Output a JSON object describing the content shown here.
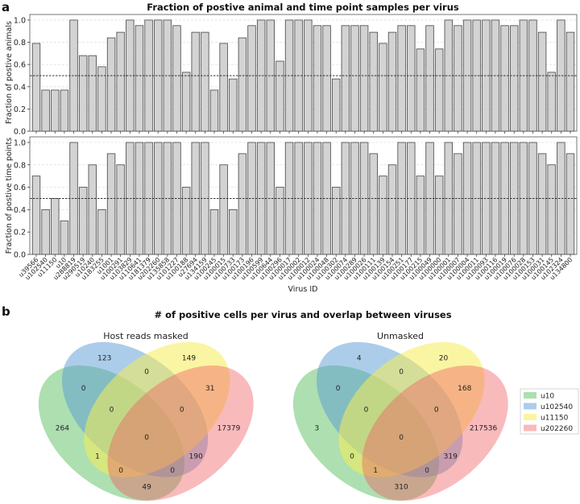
{
  "panel_a": {
    "letter": "a",
    "title": "Fraction of postive animal and time point samples per virus"
  },
  "panel_b": {
    "letter": "b",
    "title": "# of positive cells per virus and overlap between viruses"
  },
  "chart_data": [
    {
      "type": "bar",
      "title": "Fraction of postive animal and time point samples per virus",
      "ylabel": "Fraction of postive animals",
      "xlabel": "",
      "ylim": [
        0,
        1.05
      ],
      "yticks": [
        "0.0",
        "0.2",
        "0.4",
        "0.6",
        "0.8",
        "1.0"
      ],
      "threshold": 0.5,
      "grid": "horizontal dashed",
      "categories": [
        "u39566",
        "u102540",
        "u11150",
        "u10",
        "u288819",
        "u290519",
        "u10240",
        "u183255",
        "u1001",
        "u100291",
        "u103829",
        "u110641",
        "u181379",
        "u202260",
        "u135858",
        "u101227",
        "u100188",
        "u27694",
        "u134159",
        "u100245",
        "u100015",
        "u100733",
        "u100173",
        "u100196",
        "u100599",
        "u100644",
        "u100296",
        "u100017",
        "u100002",
        "u100012",
        "u100024",
        "u100048",
        "u100302",
        "u100074",
        "u100289",
        "u100026",
        "u100111",
        "u100139",
        "u100154",
        "u100251",
        "u100177",
        "u100215",
        "u100049",
        "u100000",
        "u100001",
        "u100007",
        "u100004",
        "u100011",
        "u100093",
        "u100116",
        "u100019",
        "u100076",
        "u100028",
        "u100153",
        "u100031",
        "u100145",
        "u102324",
        "u134800"
      ],
      "values": [
        0.79,
        0.37,
        0.37,
        0.37,
        1.0,
        0.68,
        0.68,
        0.58,
        0.84,
        0.89,
        1.0,
        0.95,
        1.0,
        1.0,
        1.0,
        0.95,
        0.53,
        0.89,
        0.89,
        0.37,
        0.79,
        0.47,
        0.84,
        0.95,
        1.0,
        1.0,
        0.63,
        1.0,
        1.0,
        1.0,
        0.95,
        0.95,
        0.47,
        0.95,
        0.95,
        0.95,
        0.89,
        0.79,
        0.89,
        0.95,
        0.95,
        0.74,
        0.95,
        0.74,
        1.0,
        0.95,
        1.0,
        1.0,
        1.0,
        1.0,
        0.95,
        0.95,
        1.0,
        1.0,
        0.89,
        0.53,
        1.0,
        0.89
      ]
    },
    {
      "type": "bar",
      "ylabel": "Fraction of postive time points",
      "xlabel": "Virus ID",
      "ylim": [
        0,
        1.05
      ],
      "yticks": [
        "0.0",
        "0.2",
        "0.4",
        "0.6",
        "0.8",
        "1.0"
      ],
      "threshold": 0.5,
      "grid": "horizontal dashed",
      "values": [
        0.7,
        0.4,
        0.5,
        0.3,
        1.0,
        0.6,
        0.8,
        0.4,
        0.9,
        0.8,
        1.0,
        1.0,
        1.0,
        1.0,
        1.0,
        1.0,
        0.6,
        1.0,
        1.0,
        0.4,
        0.8,
        0.4,
        0.9,
        1.0,
        1.0,
        1.0,
        0.6,
        1.0,
        1.0,
        1.0,
        1.0,
        1.0,
        0.6,
        1.0,
        1.0,
        1.0,
        0.9,
        0.7,
        0.8,
        1.0,
        1.0,
        0.7,
        1.0,
        0.7,
        1.0,
        0.9,
        1.0,
        1.0,
        1.0,
        1.0,
        1.0,
        1.0,
        1.0,
        1.0,
        0.9,
        0.8,
        1.0,
        0.9
      ]
    }
  ],
  "venn": {
    "sets": [
      {
        "name": "u10",
        "color": "#5cc062"
      },
      {
        "name": "u102540",
        "color": "#5a9bd4"
      },
      {
        "name": "u11150",
        "color": "#f6ec56"
      },
      {
        "name": "u202260",
        "color": "#f15a60"
      }
    ],
    "left": {
      "title": "Host reads masked",
      "regions": {
        "r0001": "17379",
        "r0010": "149",
        "r0011": "31",
        "r0100": "123",
        "r0101": "190",
        "r0110": "0",
        "r0111": "0",
        "r1000": "264",
        "r1001": "49",
        "r1010": "1",
        "r1011": "0",
        "r1100": "0",
        "r1101": "0",
        "r1110": "0",
        "r1111": "0"
      }
    },
    "right": {
      "title": "Unmasked",
      "regions": {
        "r0001": "217536",
        "r0010": "20",
        "r0011": "168",
        "r0100": "4",
        "r0101": "319",
        "r0110": "0",
        "r0111": "0",
        "r1000": "3",
        "r1001": "310",
        "r1010": "0",
        "r1011": "1",
        "r1100": "0",
        "r1101": "0",
        "r1110": "0",
        "r1111": "0"
      }
    }
  }
}
